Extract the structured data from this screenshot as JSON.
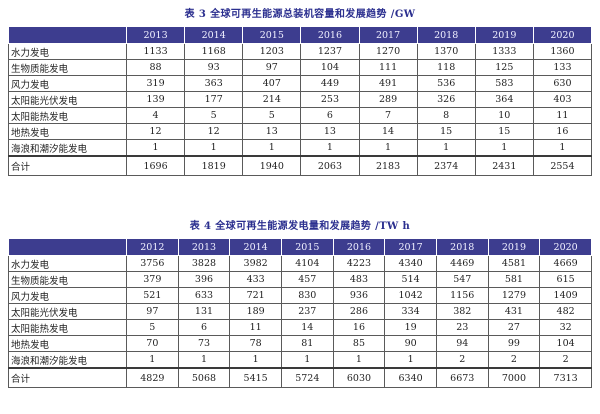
{
  "table3": {
    "title": "表 3 全球可再生能源总装机容量和发展趋势 /GW",
    "years": [
      "2013",
      "2014",
      "2015",
      "2016",
      "2017",
      "2018",
      "2019",
      "2020"
    ],
    "rows": [
      {
        "label": "水力发电",
        "values": [
          "1133",
          "1168",
          "1203",
          "1237",
          "1270",
          "1370",
          "1333",
          "1360"
        ]
      },
      {
        "label": "生物质能发电",
        "values": [
          "88",
          "93",
          "97",
          "104",
          "111",
          "118",
          "125",
          "133"
        ]
      },
      {
        "label": "风力发电",
        "values": [
          "319",
          "363",
          "407",
          "449",
          "491",
          "536",
          "583",
          "630"
        ]
      },
      {
        "label": "太阳能光伏发电",
        "values": [
          "139",
          "177",
          "214",
          "253",
          "289",
          "326",
          "364",
          "403"
        ]
      },
      {
        "label": "太阳能热发电",
        "values": [
          "4",
          "5",
          "5",
          "6",
          "7",
          "8",
          "10",
          "11"
        ]
      },
      {
        "label": "地热发电",
        "values": [
          "12",
          "12",
          "13",
          "13",
          "14",
          "15",
          "15",
          "16"
        ]
      },
      {
        "label": "海浪和潮汐能发电",
        "values": [
          "1",
          "1",
          "1",
          "1",
          "1",
          "1",
          "1",
          "1"
        ]
      }
    ],
    "total": {
      "label": "合计",
      "values": [
        "1696",
        "1819",
        "1940",
        "2063",
        "2183",
        "2374",
        "2431",
        "2554"
      ]
    }
  },
  "table4": {
    "title": "表 4 全球可再生能源发电量和发展趋势 /TW h",
    "years": [
      "2012",
      "2013",
      "2014",
      "2015",
      "2016",
      "2017",
      "2018",
      "2019",
      "2020"
    ],
    "rows": [
      {
        "label": "水力发电",
        "values": [
          "3756",
          "3828",
          "3982",
          "4104",
          "4223",
          "4340",
          "4469",
          "4581",
          "4669"
        ]
      },
      {
        "label": "生物质能发电",
        "values": [
          "379",
          "396",
          "433",
          "457",
          "483",
          "514",
          "547",
          "581",
          "615"
        ]
      },
      {
        "label": "风力发电",
        "values": [
          "521",
          "633",
          "721",
          "830",
          "936",
          "1042",
          "1156",
          "1279",
          "1409"
        ]
      },
      {
        "label": "太阳能光伏发电",
        "values": [
          "97",
          "131",
          "189",
          "237",
          "286",
          "334",
          "382",
          "431",
          "482"
        ]
      },
      {
        "label": "太阳能热发电",
        "values": [
          "5",
          "6",
          "11",
          "14",
          "16",
          "19",
          "23",
          "27",
          "32"
        ]
      },
      {
        "label": "地热发电",
        "values": [
          "70",
          "73",
          "78",
          "81",
          "85",
          "90",
          "94",
          "99",
          "104"
        ]
      },
      {
        "label": "海浪和潮汐能发电",
        "values": [
          "1",
          "1",
          "1",
          "1",
          "1",
          "1",
          "2",
          "2",
          "2"
        ]
      }
    ],
    "total": {
      "label": "合计",
      "values": [
        "4829",
        "5068",
        "5415",
        "5724",
        "6030",
        "6340",
        "6673",
        "7000",
        "7313"
      ]
    }
  },
  "colors": {
    "header_bg": "#3d3d8f",
    "caption_text": "#2b2f8f"
  }
}
